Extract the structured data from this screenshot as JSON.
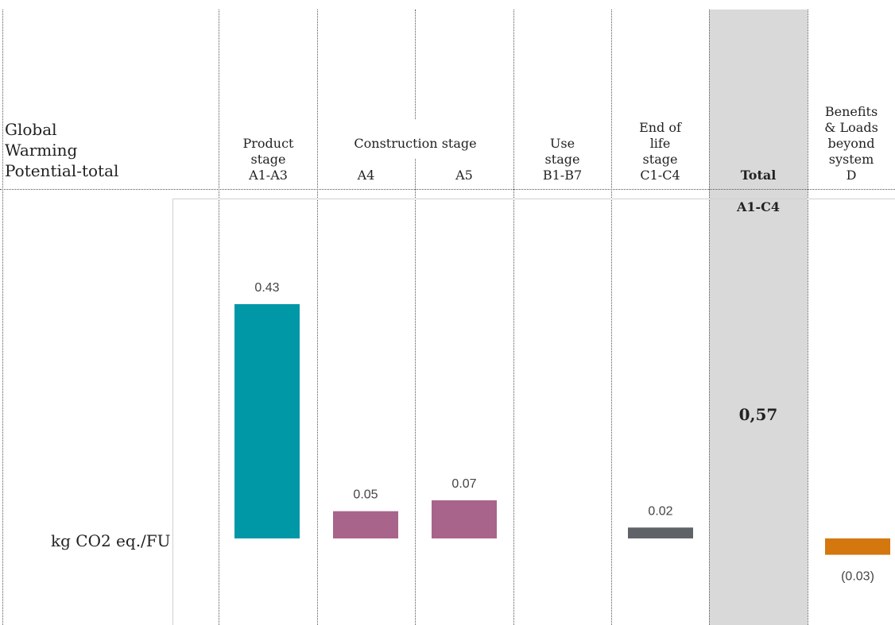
{
  "header": {
    "title": "Global\nWarming\nPotential-total",
    "unit": "kg CO2 eq./FU",
    "product_stage": "Product\nstage\nA1-A3",
    "construction_group": "Construction stage",
    "a4": "A4",
    "a5": "A5",
    "use_stage": "Use\nstage\nB1-B7",
    "end_of_life": "End of\nlife\nstage\nC1-C4",
    "total_label": "Total",
    "total_code": "A1-C4",
    "total_value": "0,57",
    "benefits": "Benefits\n& Loads\nbeyond\nsystem\nD"
  },
  "chart_data": {
    "type": "bar",
    "categories": [
      "A1-A3",
      "A4",
      "A5",
      "B1-B7",
      "C1-C4",
      "A1-C4",
      "D"
    ],
    "values": [
      0.43,
      0.05,
      0.07,
      null,
      0.02,
      null,
      -0.03
    ],
    "data_labels": [
      "0.43",
      "0.05",
      "0.07",
      "",
      "0.02",
      "",
      "(0.03)"
    ],
    "colors": [
      "#0097a7",
      "#a8648a",
      "#a8648a",
      null,
      "#5f6368",
      null,
      "#d4770f"
    ],
    "total": 0.57,
    "ylim": [
      -0.03,
      0.43
    ],
    "grid": false,
    "ylabel": "kg CO2 eq./FU"
  }
}
